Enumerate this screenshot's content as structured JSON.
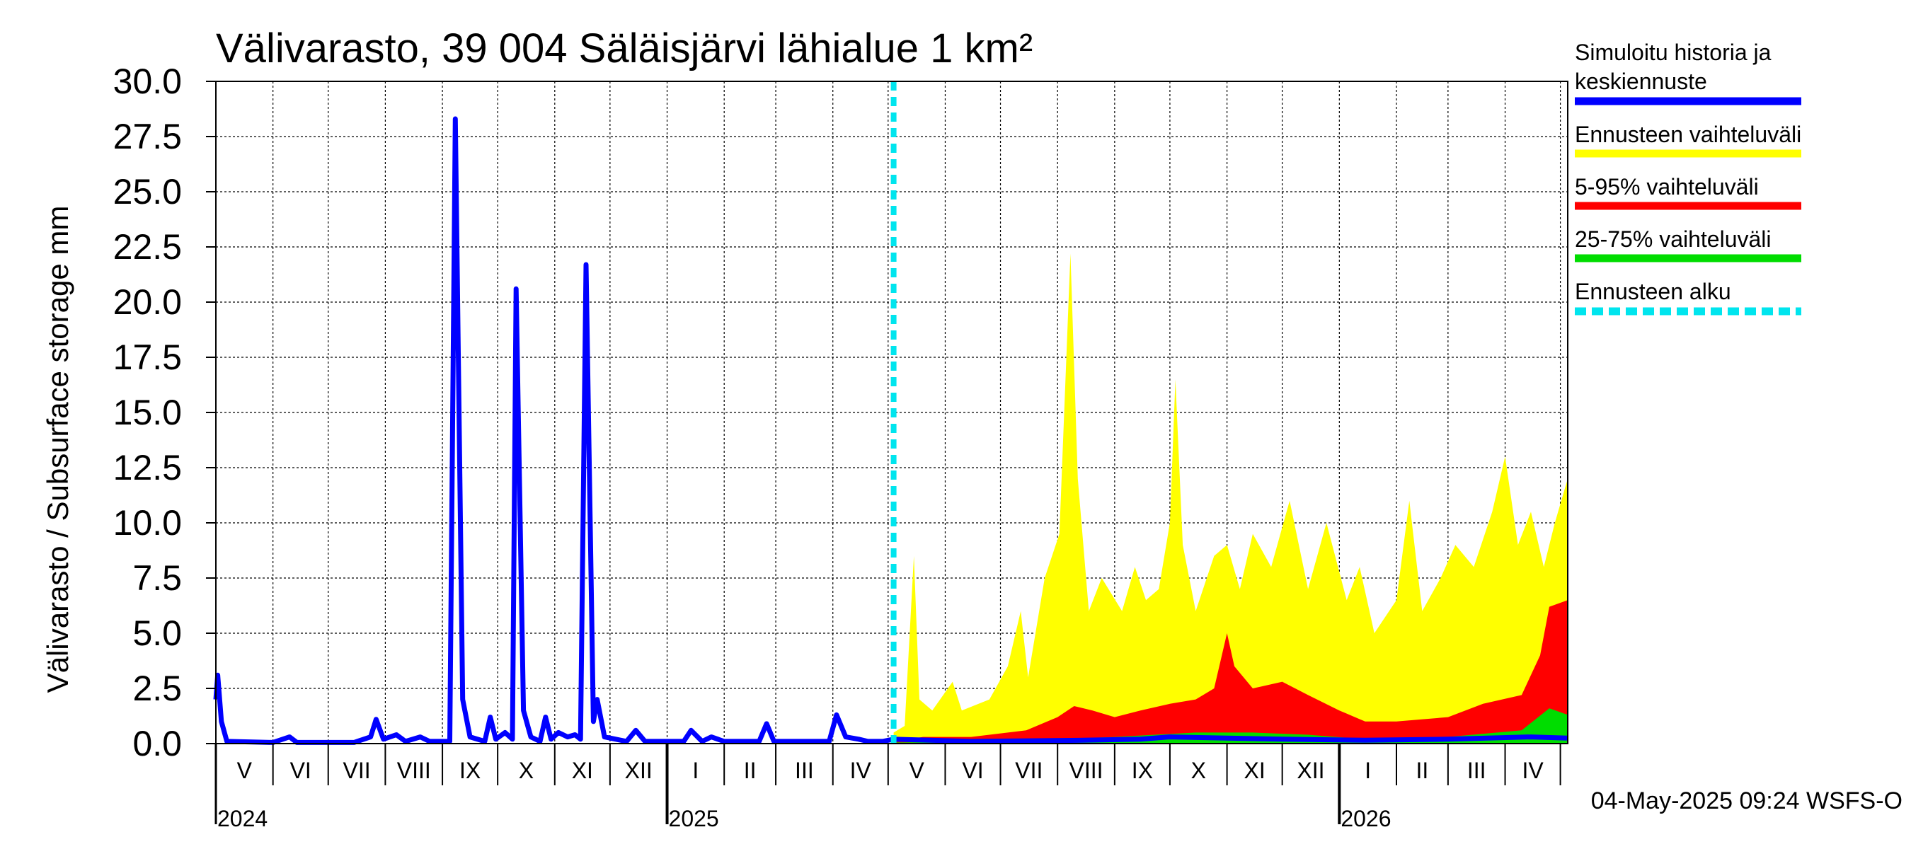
{
  "chart_data": {
    "type": "area",
    "title": "Välivarasto, 39 004 Säläisjärvi lähialue 1 km²",
    "ylabel": "Välivarasto / Subsurface storage  mm",
    "xlabel": "",
    "ylim": [
      0,
      30
    ],
    "y_ticks": [
      "0.0",
      "2.5",
      "5.0",
      "7.5",
      "10.0",
      "12.5",
      "15.0",
      "17.5",
      "20.0",
      "22.5",
      "25.0",
      "27.5",
      "30.0"
    ],
    "months": [
      "V",
      "VI",
      "VII",
      "VIII",
      "IX",
      "X",
      "XI",
      "XII",
      "I",
      "II",
      "III",
      "IV",
      "V",
      "VI",
      "VII",
      "VIII",
      "IX",
      "X",
      "XI",
      "XII",
      "I",
      "II",
      "III",
      "IV"
    ],
    "years": [
      "2024",
      "2025",
      "2026"
    ],
    "x_start": "2024-05-01",
    "x_end": "2026-05-05",
    "forecast_start": "2025-05-04",
    "grid": true,
    "legend": [
      {
        "label": "Simuloitu historia ja keskiennuste",
        "color": "#0000ff",
        "style": "solid"
      },
      {
        "label": "Ennusteen vaihteluväli",
        "color": "#ffff00",
        "style": "solid"
      },
      {
        "label": "5-95% vaihteluväli",
        "color": "#ff0000",
        "style": "solid"
      },
      {
        "label": "25-75% vaihteluväli",
        "color": "#00dd00",
        "style": "solid"
      },
      {
        "label": "Ennusteen alku",
        "color": "#00e5ee",
        "style": "dashed"
      }
    ],
    "series": [
      {
        "name": "Simuloitu historia ja keskiennuste",
        "color": "#0000ff",
        "points": [
          [
            "2024-05-01",
            2.0
          ],
          [
            "2024-05-02",
            3.1
          ],
          [
            "2024-05-04",
            1.0
          ],
          [
            "2024-05-07",
            0.1
          ],
          [
            "2024-06-01",
            0.05
          ],
          [
            "2024-06-10",
            0.3
          ],
          [
            "2024-06-14",
            0.05
          ],
          [
            "2024-07-15",
            0.05
          ],
          [
            "2024-07-24",
            0.3
          ],
          [
            "2024-07-27",
            1.1
          ],
          [
            "2024-07-31",
            0.2
          ],
          [
            "2024-08-07",
            0.4
          ],
          [
            "2024-08-12",
            0.1
          ],
          [
            "2024-08-20",
            0.3
          ],
          [
            "2024-08-25",
            0.1
          ],
          [
            "2024-09-05",
            0.1
          ],
          [
            "2024-09-08",
            28.3
          ],
          [
            "2024-09-12",
            2.0
          ],
          [
            "2024-09-16",
            0.3
          ],
          [
            "2024-09-24",
            0.1
          ],
          [
            "2024-09-27",
            1.2
          ],
          [
            "2024-09-30",
            0.2
          ],
          [
            "2024-10-05",
            0.5
          ],
          [
            "2024-10-09",
            0.2
          ],
          [
            "2024-10-11",
            20.6
          ],
          [
            "2024-10-15",
            1.5
          ],
          [
            "2024-10-19",
            0.3
          ],
          [
            "2024-10-24",
            0.1
          ],
          [
            "2024-10-27",
            1.2
          ],
          [
            "2024-10-30",
            0.2
          ],
          [
            "2024-11-03",
            0.5
          ],
          [
            "2024-11-08",
            0.3
          ],
          [
            "2024-11-12",
            0.4
          ],
          [
            "2024-11-15",
            0.2
          ],
          [
            "2024-11-18",
            21.7
          ],
          [
            "2024-11-22",
            1.0
          ],
          [
            "2024-11-24",
            2.0
          ],
          [
            "2024-11-28",
            0.3
          ],
          [
            "2024-12-10",
            0.1
          ],
          [
            "2024-12-15",
            0.6
          ],
          [
            "2024-12-20",
            0.1
          ],
          [
            "2025-01-10",
            0.1
          ],
          [
            "2025-01-14",
            0.6
          ],
          [
            "2025-01-20",
            0.1
          ],
          [
            "2025-01-25",
            0.3
          ],
          [
            "2025-02-01",
            0.1
          ],
          [
            "2025-02-20",
            0.1
          ],
          [
            "2025-02-24",
            0.9
          ],
          [
            "2025-02-28",
            0.1
          ],
          [
            "2025-03-15",
            0.1
          ],
          [
            "2025-03-30",
            0.1
          ],
          [
            "2025-04-03",
            1.3
          ],
          [
            "2025-04-08",
            0.3
          ],
          [
            "2025-04-15",
            0.2
          ],
          [
            "2025-04-20",
            0.1
          ],
          [
            "2025-04-28",
            0.1
          ],
          [
            "2025-05-04",
            0.2
          ],
          [
            "2025-06-15",
            0.1
          ],
          [
            "2025-08-15",
            0.15
          ],
          [
            "2025-09-15",
            0.2
          ],
          [
            "2025-10-01",
            0.3
          ],
          [
            "2025-11-01",
            0.25
          ],
          [
            "2025-12-01",
            0.2
          ],
          [
            "2026-01-15",
            0.15
          ],
          [
            "2026-03-01",
            0.2
          ],
          [
            "2026-04-15",
            0.3
          ],
          [
            "2026-05-05",
            0.25
          ]
        ]
      }
    ],
    "bands": [
      {
        "name": "Ennusteen vaihteluväli",
        "color": "#ffff00",
        "low": 0,
        "upper_envelope": [
          [
            "2025-05-04",
            0.5
          ],
          [
            "2025-05-10",
            0.8
          ],
          [
            "2025-05-15",
            8.5
          ],
          [
            "2025-05-18",
            2.0
          ],
          [
            "2025-05-25",
            1.5
          ],
          [
            "2025-06-05",
            2.8
          ],
          [
            "2025-06-10",
            1.5
          ],
          [
            "2025-06-25",
            2.0
          ],
          [
            "2025-07-05",
            3.5
          ],
          [
            "2025-07-12",
            6.0
          ],
          [
            "2025-07-16",
            3.0
          ],
          [
            "2025-07-25",
            7.5
          ],
          [
            "2025-08-02",
            9.5
          ],
          [
            "2025-08-08",
            22.2
          ],
          [
            "2025-08-12",
            12.0
          ],
          [
            "2025-08-18",
            6.0
          ],
          [
            "2025-08-25",
            7.5
          ],
          [
            "2025-09-05",
            6.0
          ],
          [
            "2025-09-12",
            8.0
          ],
          [
            "2025-09-18",
            6.5
          ],
          [
            "2025-09-25",
            7.0
          ],
          [
            "2025-10-01",
            10.0
          ],
          [
            "2025-10-04",
            16.5
          ],
          [
            "2025-10-08",
            9.0
          ],
          [
            "2025-10-15",
            6.0
          ],
          [
            "2025-10-25",
            8.5
          ],
          [
            "2025-11-01",
            9.0
          ],
          [
            "2025-11-08",
            7.0
          ],
          [
            "2025-11-15",
            9.5
          ],
          [
            "2025-11-25",
            8.0
          ],
          [
            "2025-12-05",
            11.0
          ],
          [
            "2025-12-15",
            7.0
          ],
          [
            "2025-12-25",
            10.0
          ],
          [
            "2026-01-05",
            6.5
          ],
          [
            "2026-01-12",
            8.0
          ],
          [
            "2026-01-20",
            5.0
          ],
          [
            "2026-02-01",
            6.5
          ],
          [
            "2026-02-08",
            11.0
          ],
          [
            "2026-02-15",
            6.0
          ],
          [
            "2026-02-25",
            7.5
          ],
          [
            "2026-03-05",
            9.0
          ],
          [
            "2026-03-15",
            8.0
          ],
          [
            "2026-03-25",
            10.5
          ],
          [
            "2026-04-01",
            13.0
          ],
          [
            "2026-04-08",
            9.0
          ],
          [
            "2026-04-15",
            10.5
          ],
          [
            "2026-04-22",
            8.0
          ],
          [
            "2026-04-28",
            10.0
          ],
          [
            "2026-05-05",
            12.0
          ]
        ]
      },
      {
        "name": "5-95% vaihteluväli",
        "color": "#ff0000",
        "low": 0,
        "upper_envelope": [
          [
            "2025-05-04",
            0.1
          ],
          [
            "2025-05-20",
            0.3
          ],
          [
            "2025-06-15",
            0.3
          ],
          [
            "2025-07-15",
            0.6
          ],
          [
            "2025-08-01",
            1.2
          ],
          [
            "2025-08-10",
            1.7
          ],
          [
            "2025-08-20",
            1.5
          ],
          [
            "2025-09-01",
            1.2
          ],
          [
            "2025-09-15",
            1.5
          ],
          [
            "2025-10-01",
            1.8
          ],
          [
            "2025-10-15",
            2.0
          ],
          [
            "2025-10-25",
            2.5
          ],
          [
            "2025-11-01",
            5.0
          ],
          [
            "2025-11-05",
            3.5
          ],
          [
            "2025-11-15",
            2.5
          ],
          [
            "2025-12-01",
            2.8
          ],
          [
            "2025-12-15",
            2.2
          ],
          [
            "2026-01-01",
            1.5
          ],
          [
            "2026-01-15",
            1.0
          ],
          [
            "2026-02-01",
            1.0
          ],
          [
            "2026-03-01",
            1.2
          ],
          [
            "2026-03-20",
            1.8
          ],
          [
            "2026-04-10",
            2.2
          ],
          [
            "2026-04-20",
            4.0
          ],
          [
            "2026-04-25",
            6.2
          ],
          [
            "2026-05-05",
            6.5
          ]
        ]
      },
      {
        "name": "25-75% vaihteluväli",
        "color": "#00dd00",
        "low": 0,
        "upper_envelope": [
          [
            "2025-05-04",
            0.05
          ],
          [
            "2025-07-01",
            0.1
          ],
          [
            "2025-09-01",
            0.3
          ],
          [
            "2025-10-15",
            0.5
          ],
          [
            "2025-11-15",
            0.5
          ],
          [
            "2025-12-15",
            0.4
          ],
          [
            "2026-01-15",
            0.2
          ],
          [
            "2026-03-01",
            0.3
          ],
          [
            "2026-04-10",
            0.6
          ],
          [
            "2026-04-25",
            1.6
          ],
          [
            "2026-05-05",
            1.3
          ]
        ]
      }
    ]
  },
  "footer": {
    "timestamp": "04-May-2025 09:24 WSFS-O"
  },
  "colors": {
    "axis": "#000000",
    "grid": "#000000"
  }
}
